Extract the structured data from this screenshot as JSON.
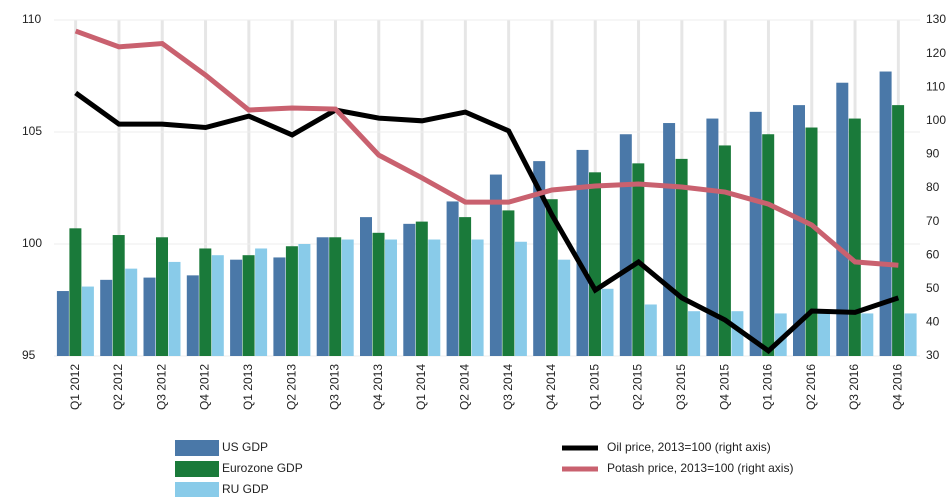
{
  "chart_data": {
    "type": "combo",
    "categories": [
      "Q1 2012",
      "Q2 2012",
      "Q3 2012",
      "Q4 2012",
      "Q1 2013",
      "Q2 2013",
      "Q3 2013",
      "Q4 2013",
      "Q1 2014",
      "Q2 2014",
      "Q3 2014",
      "Q4 2014",
      "Q1 2015",
      "Q2 2015",
      "Q3 2015",
      "Q4 2015",
      "Q1 2016",
      "Q2 2016",
      "Q3 2016",
      "Q4 2016"
    ],
    "series": [
      {
        "name": "US GDP",
        "type": "bar",
        "color": "#4a78a8",
        "values": [
          97.9,
          98.4,
          98.5,
          98.6,
          99.3,
          99.4,
          100.3,
          101.2,
          100.9,
          101.9,
          103.1,
          103.7,
          104.2,
          104.9,
          105.4,
          105.6,
          105.9,
          106.2,
          107.2,
          107.7
        ]
      },
      {
        "name": "Eurozone GDP",
        "type": "bar",
        "color": "#1a7a3a",
        "values": [
          100.7,
          100.4,
          100.3,
          99.8,
          99.5,
          99.9,
          100.3,
          100.5,
          101.0,
          101.2,
          101.5,
          102.0,
          103.2,
          103.6,
          103.8,
          104.4,
          104.9,
          105.2,
          105.6,
          106.2
        ]
      },
      {
        "name": "RU GDP",
        "type": "bar",
        "color": "#89cbe9",
        "values": [
          98.1,
          98.9,
          99.2,
          99.5,
          99.8,
          100.0,
          100.2,
          100.2,
          100.2,
          100.2,
          100.1,
          99.3,
          98.0,
          97.3,
          97.0,
          97.0,
          96.9,
          96.9,
          96.9,
          96.9
        ]
      },
      {
        "name": "Oil price, 2013=100 (right axis)",
        "type": "line",
        "axis": "y2",
        "color": "#000000",
        "values": [
          108.3,
          99,
          99,
          98,
          101.4,
          95.8,
          103.2,
          100.8,
          100,
          102.6,
          97,
          72,
          49.6,
          58,
          47.3,
          40.7,
          31.5,
          43.4,
          43,
          47.3
        ]
      },
      {
        "name": "Potash price, 2013=100 (right axis)",
        "type": "line",
        "axis": "y2",
        "color": "#c9616f",
        "values": [
          126.7,
          122,
          123,
          113.6,
          103.2,
          103.8,
          103.5,
          89.8,
          83,
          75.8,
          75.8,
          79.4,
          80.6,
          81.2,
          80.3,
          78.8,
          75.2,
          69,
          58,
          57
        ]
      }
    ],
    "ylim": [
      95,
      110
    ],
    "yticks": [
      95,
      100,
      105,
      110
    ],
    "y2lim": [
      30,
      130
    ],
    "y2ticks": [
      30,
      40,
      50,
      60,
      70,
      80,
      90,
      100,
      110,
      120,
      130
    ],
    "grid": true
  }
}
